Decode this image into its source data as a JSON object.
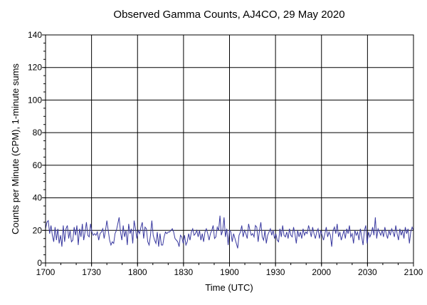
{
  "chart_data": {
    "type": "line",
    "title": "Observed Gamma Counts, AJ4CO, 29 May 2020",
    "xlabel": "Time (UTC)",
    "ylabel": "Counts per Minute (CPM), 1-minute sums",
    "x_tick_labels": [
      "1700",
      "1730",
      "1800",
      "1830",
      "1900",
      "1930",
      "2000",
      "2030",
      "2100"
    ],
    "y_tick_labels": [
      "0",
      "20",
      "40",
      "60",
      "80",
      "100",
      "120",
      "140"
    ],
    "y_ticks": [
      0,
      20,
      40,
      60,
      80,
      100,
      120,
      140
    ],
    "ylim": [
      0,
      140
    ],
    "x_range": [
      "17:00",
      "21:00"
    ],
    "x_unit": "minutes after 17:00 UTC, 1-minute samples",
    "grid": true,
    "series": [
      {
        "name": "",
        "color": "#3a3aa0",
        "values": [
          21,
          25,
          26,
          18,
          23,
          17,
          13,
          22,
          14,
          21,
          12,
          17,
          10,
          23,
          13,
          21,
          23,
          15,
          20,
          13,
          14,
          22,
          17,
          23,
          11,
          21,
          16,
          24,
          14,
          19,
          25,
          17,
          16,
          24,
          19,
          17,
          18,
          17,
          19,
          14,
          18,
          19,
          21,
          15,
          20,
          26,
          20,
          14,
          11,
          13,
          12,
          18,
          20,
          24,
          28,
          19,
          14,
          23,
          16,
          20,
          11,
          24,
          18,
          21,
          12,
          26,
          21,
          15,
          20,
          18,
          22,
          25,
          15,
          22,
          21,
          13,
          11,
          17,
          26,
          17,
          14,
          12,
          19,
          10,
          18,
          11,
          11,
          16,
          19,
          18,
          19,
          19,
          20,
          21,
          19,
          15,
          14,
          13,
          10,
          17,
          16,
          12,
          17,
          11,
          13,
          18,
          14,
          19,
          21,
          17,
          18,
          20,
          16,
          20,
          14,
          18,
          13,
          19,
          21,
          18,
          14,
          18,
          20,
          23,
          15,
          16,
          22,
          20,
          29,
          17,
          20,
          28,
          16,
          21,
          11,
          20,
          19,
          13,
          18,
          15,
          12,
          9,
          17,
          19,
          23,
          16,
          20,
          18,
          15,
          24,
          20,
          17,
          18,
          16,
          23,
          22,
          13,
          20,
          25,
          16,
          14,
          20,
          12,
          17,
          19,
          21,
          17,
          20,
          15,
          18,
          14,
          13,
          21,
          16,
          23,
          17,
          16,
          19,
          15,
          21,
          17,
          16,
          22,
          18,
          12,
          20,
          16,
          19,
          15,
          21,
          17,
          19,
          18,
          23,
          20,
          16,
          22,
          18,
          15,
          19,
          21,
          15,
          20,
          17,
          14,
          18,
          22,
          16,
          19,
          17,
          10,
          20,
          22,
          18,
          24,
          16,
          19,
          14,
          17,
          20,
          15,
          21,
          18,
          23,
          16,
          18,
          12,
          20,
          17,
          19,
          14,
          21,
          16,
          11,
          20,
          23,
          12,
          19,
          16,
          18,
          22,
          17,
          28,
          15,
          21,
          19,
          17,
          20,
          16,
          22,
          18,
          15,
          20,
          17,
          21,
          19,
          16,
          23,
          18,
          14,
          21,
          17,
          20,
          15,
          22,
          18,
          21,
          12,
          19,
          22,
          20
        ]
      }
    ]
  }
}
